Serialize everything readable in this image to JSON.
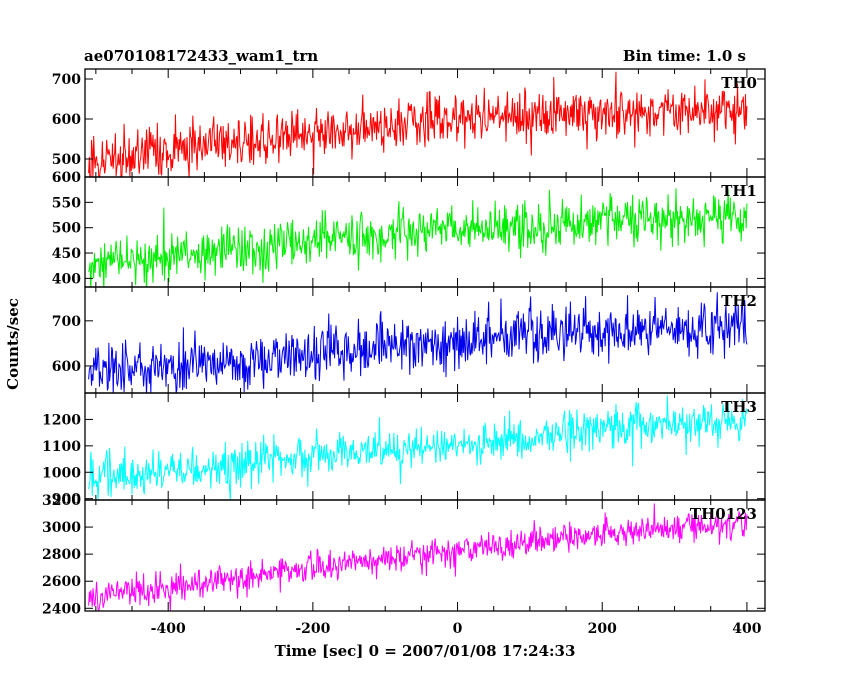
{
  "header": {
    "title": "ae070108172433_wam1_trn",
    "bin_time": "Bin time: 1.0 s"
  },
  "axes": {
    "xlabel": "Time [sec] 0 = 2007/01/08 17:24:33",
    "ylabel": "Counts/sec"
  },
  "chart_data": {
    "type": "line",
    "title": "ae070108172433_wam1_trn",
    "subtitle": "Bin time: 1.0 s",
    "xlabel": "Time [sec] 0 = 2007/01/08 17:24:33",
    "ylabel": "Counts/sec",
    "xlim": [
      -515,
      425
    ],
    "x_ticks": [
      -400,
      -200,
      0,
      200,
      400
    ],
    "x_range": [
      -510,
      400
    ],
    "bin_time_s": 1.0,
    "grid": false,
    "panels": [
      {
        "name": "TH0",
        "color": "#ff0000",
        "ylim": [
          455,
          725
        ],
        "y_ticks": [
          500,
          600,
          700
        ],
        "y_tick_labels": [
          "500",
          "600",
          "700"
        ],
        "trend": [
          [
            -510,
            490
          ],
          [
            -400,
            520
          ],
          [
            -300,
            545
          ],
          [
            -200,
            565
          ],
          [
            -100,
            585
          ],
          [
            0,
            603
          ],
          [
            100,
            612
          ],
          [
            200,
            618
          ],
          [
            300,
            622
          ],
          [
            400,
            625
          ]
        ],
        "noise_sd": 32
      },
      {
        "name": "TH1",
        "color": "#00ee00",
        "ylim": [
          383,
          600
        ],
        "y_ticks": [
          400,
          450,
          500,
          550,
          600
        ],
        "y_tick_labels": [
          "400",
          "450",
          "500",
          "550",
          "600"
        ],
        "trend": [
          [
            -510,
            425
          ],
          [
            -400,
            445
          ],
          [
            -300,
            460
          ],
          [
            -200,
            475
          ],
          [
            -100,
            485
          ],
          [
            0,
            497
          ],
          [
            100,
            507
          ],
          [
            200,
            515
          ],
          [
            300,
            520
          ],
          [
            400,
            523
          ]
        ],
        "noise_sd": 24
      },
      {
        "name": "TH2",
        "color": "#0000ee",
        "ylim": [
          540,
          775
        ],
        "y_ticks": [
          600,
          700
        ],
        "y_tick_labels": [
          "600",
          "700"
        ],
        "trend": [
          [
            -510,
            590
          ],
          [
            -400,
            598
          ],
          [
            -300,
            607
          ],
          [
            -200,
            622
          ],
          [
            -100,
            640
          ],
          [
            0,
            655
          ],
          [
            100,
            668
          ],
          [
            200,
            677
          ],
          [
            300,
            682
          ],
          [
            400,
            687
          ]
        ],
        "noise_sd": 30
      },
      {
        "name": "TH3",
        "color": "#00ffff",
        "ylim": [
          895,
          1300
        ],
        "y_ticks": [
          900,
          1000,
          1100,
          1200
        ],
        "y_tick_labels": [
          "900",
          "1000",
          "1100",
          "1200"
        ],
        "trend": [
          [
            -510,
            975
          ],
          [
            -400,
            1000
          ],
          [
            -300,
            1030
          ],
          [
            -200,
            1060
          ],
          [
            -100,
            1085
          ],
          [
            0,
            1110
          ],
          [
            100,
            1135
          ],
          [
            200,
            1160
          ],
          [
            300,
            1180
          ],
          [
            400,
            1200
          ]
        ],
        "noise_sd": 40
      },
      {
        "name": "TH0123",
        "color": "#ff00ff",
        "ylim": [
          2380,
          3200
        ],
        "y_ticks": [
          2400,
          2600,
          2800,
          3000,
          3200
        ],
        "y_tick_labels": [
          "2400",
          "2600",
          "2800",
          "3000",
          "3200"
        ],
        "trend": [
          [
            -510,
            2480
          ],
          [
            -400,
            2550
          ],
          [
            -300,
            2620
          ],
          [
            -200,
            2690
          ],
          [
            -100,
            2760
          ],
          [
            0,
            2830
          ],
          [
            100,
            2900
          ],
          [
            200,
            2950
          ],
          [
            300,
            3000
          ],
          [
            400,
            3030
          ]
        ],
        "noise_sd": 55
      }
    ]
  }
}
